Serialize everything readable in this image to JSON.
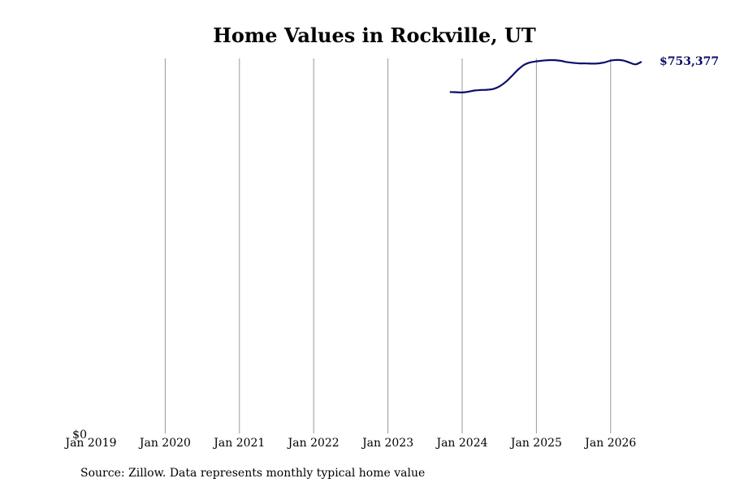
{
  "chart_data": {
    "type": "line",
    "title": "Home Values in Rockville, UT",
    "xlabel": "",
    "ylabel": "",
    "source": "Source: Zillow. Data represents monthly typical home value",
    "y_tick_label": "$0",
    "ylim": [
      0,
      760000
    ],
    "xlim": [
      "2019-01",
      "2026-08"
    ],
    "x_ticks": [
      {
        "date": "2019-01",
        "label": "Jan 2019"
      },
      {
        "date": "2020-01",
        "label": "Jan 2020"
      },
      {
        "date": "2021-01",
        "label": "Jan 2021"
      },
      {
        "date": "2022-01",
        "label": "Jan 2022"
      },
      {
        "date": "2023-01",
        "label": "Jan 2023"
      },
      {
        "date": "2024-01",
        "label": "Jan 2024"
      },
      {
        "date": "2025-01",
        "label": "Jan 2025"
      },
      {
        "date": "2026-01",
        "label": "Jan 2026"
      }
    ],
    "grid": "vertical",
    "line_color": "#0d0d6b",
    "end_label": "$753,377",
    "series": [
      {
        "x": [
          "2023-11",
          "2023-12",
          "2024-01",
          "2024-02",
          "2024-03",
          "2024-04",
          "2024-05",
          "2024-06",
          "2024-07",
          "2024-08",
          "2024-09",
          "2024-10",
          "2024-11",
          "2024-12",
          "2025-01",
          "2025-02",
          "2025-03",
          "2025-04",
          "2025-05",
          "2025-06",
          "2025-07",
          "2025-08",
          "2025-09",
          "2025-10",
          "2025-11",
          "2025-12",
          "2026-01",
          "2026-02",
          "2026-03",
          "2026-04",
          "2026-05",
          "2026-06"
        ],
        "y": [
          692000,
          691500,
          691000,
          692500,
          695000,
          696000,
          696500,
          698000,
          703000,
          712000,
          724000,
          737000,
          747000,
          752000,
          754000,
          755500,
          756500,
          756500,
          755000,
          752500,
          751000,
          750000,
          750000,
          749500,
          750000,
          752000,
          755500,
          757000,
          756000,
          752000,
          748000,
          753377
        ]
      }
    ]
  }
}
